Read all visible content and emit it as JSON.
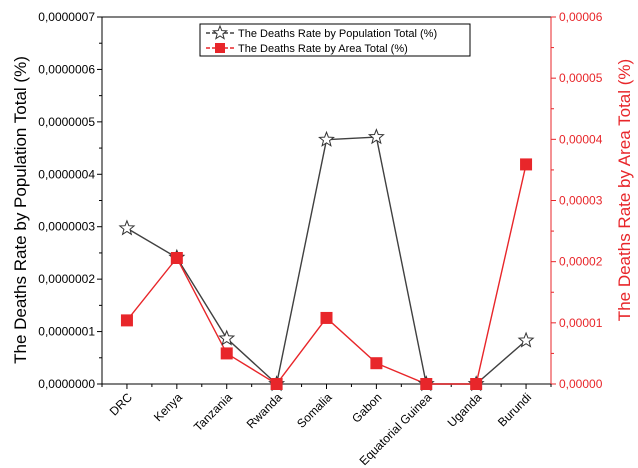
{
  "chart_data": {
    "type": "line",
    "categories": [
      "DRC",
      "Kenya",
      "Tanzania",
      "Rwanda",
      "Somalia",
      "Gabon",
      "Equatorial Guinea",
      "Uganda",
      "Burundi"
    ],
    "series": [
      {
        "name": "The Deaths Rate by Population Total (%)",
        "axis": "left",
        "color": "#404040",
        "marker": "star",
        "values": [
          2.97e-07,
          2.41e-07,
          8.7e-08,
          0.0,
          4.66e-07,
          4.71e-07,
          0.0,
          0.0,
          8.3e-08
        ]
      },
      {
        "name": "The Deaths Rate by Area Total (%)",
        "axis": "right",
        "color": "#e8262a",
        "marker": "square",
        "values": [
          1.04e-05,
          2.06e-05,
          5e-06,
          0.0,
          1.08e-05,
          3.4e-06,
          0.0,
          0.0,
          3.59e-05
        ]
      }
    ],
    "ylabel": "The Deaths Rate by Population Total (%)",
    "ylabel_right": "The Deaths Rate by Area Total (%)",
    "ylim": [
      0,
      7e-07
    ],
    "ylim_right": [
      0,
      6e-05
    ],
    "yticks": [
      "0,0000000",
      "0,0000001",
      "0,0000002",
      "0,0000003",
      "0,0000004",
      "0,0000005",
      "0,0000006",
      "0,0000007"
    ],
    "yticks_right": [
      "0,00000",
      "0,00001",
      "0,00002",
      "0,00003",
      "0,00004",
      "0,00005",
      "0,00006"
    ],
    "legend_position": "top-center",
    "grid": false,
    "colors": {
      "left_axis": "#000000",
      "right_axis": "#e8262a"
    }
  }
}
